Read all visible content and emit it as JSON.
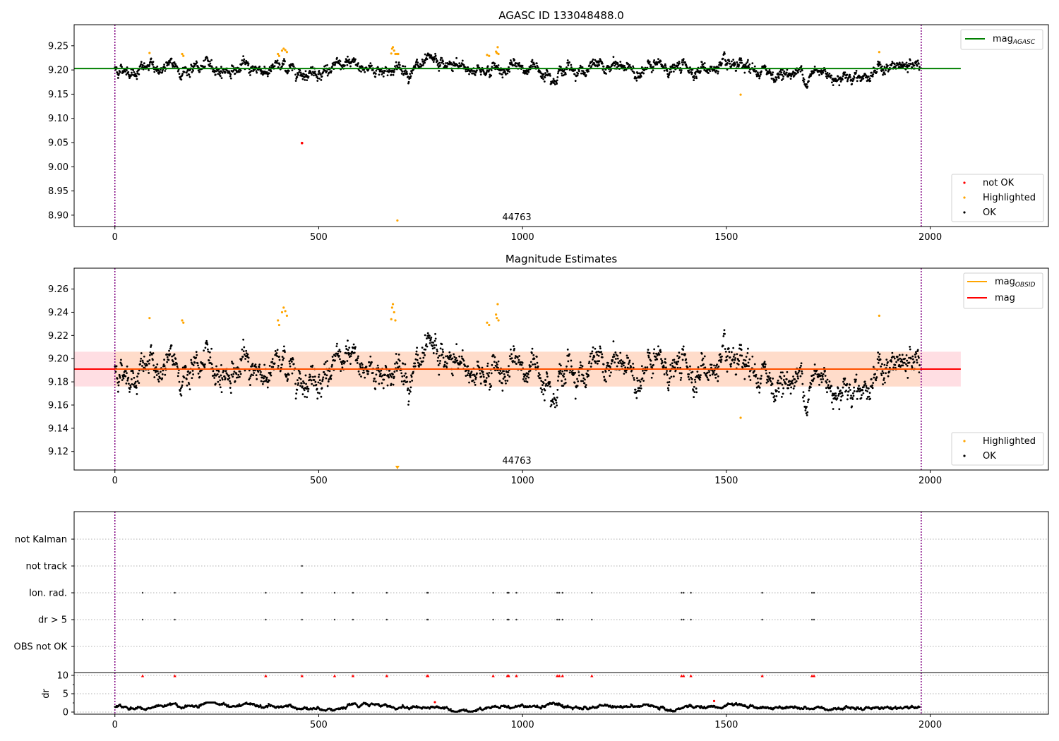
{
  "colors": {
    "ok": "#000000",
    "highlighted": "#ffa500",
    "not_ok": "#ff0000",
    "mag_agasc": "#008000",
    "mag_obsid": "#ffa500",
    "mag": "#ff0000",
    "band": "#ffb6c1",
    "band2": "#ffdab9",
    "vline": "#800080",
    "grid": "#b0b0b0"
  },
  "chart_data": [
    {
      "type": "scatter",
      "title": "AGASC ID 133048488.0",
      "xlabel": "",
      "ylabel": "",
      "xlim": [
        -100,
        2290
      ],
      "ylim": [
        8.8765,
        9.2935
      ],
      "xticks": [
        "0",
        "500",
        "1000",
        "1500",
        "2000"
      ],
      "yticks": [
        "9.25",
        "9.20",
        "9.15",
        "9.10",
        "9.05",
        "9.00",
        "8.95",
        "8.90"
      ],
      "obsid_label": "44763",
      "obsid_label_x": 990,
      "vlines": [
        0,
        1978
      ],
      "hlines": [
        {
          "name": "mag_AGASC",
          "y": 9.203,
          "x": [
            -100,
            2075
          ]
        }
      ],
      "legend_upper": {
        "position": "upper right",
        "entries": [
          {
            "label": "mag",
            "sub": "AGASC",
            "color": "mag_agasc"
          }
        ]
      },
      "legend_lower": {
        "position": "lower right",
        "entries": [
          {
            "label": "not OK",
            "color": "not_ok"
          },
          {
            "label": "Highlighted",
            "color": "highlighted"
          },
          {
            "label": "OK",
            "color": "ok"
          }
        ]
      },
      "series": [
        {
          "name": "OK",
          "n": 1975,
          "x_range": [
            0,
            1975
          ],
          "mean": 9.191,
          "noise": 0.01
        },
        {
          "name": "Highlighted",
          "points": [
            [
              85,
              9.235
            ],
            [
              165,
              9.233
            ],
            [
              168,
              9.229
            ],
            [
              400,
              9.233
            ],
            [
              403,
              9.229
            ],
            [
              410,
              9.24
            ],
            [
              414,
              9.244
            ],
            [
              418,
              9.241
            ],
            [
              422,
              9.237
            ],
            [
              678,
              9.234
            ],
            [
              680,
              9.244
            ],
            [
              682,
              9.247
            ],
            [
              685,
              9.24
            ],
            [
              688,
              9.233
            ],
            [
              692,
              9.233
            ],
            [
              695,
              9.233
            ],
            [
              913,
              9.231
            ],
            [
              918,
              9.229
            ],
            [
              935,
              9.238
            ],
            [
              937,
              9.235
            ],
            [
              939,
              9.247
            ],
            [
              941,
              9.233
            ],
            [
              1535,
              9.149
            ],
            [
              1875,
              9.237
            ],
            [
              693,
              8.889
            ]
          ]
        },
        {
          "name": "not OK",
          "points": [
            [
              459,
              9.049
            ]
          ]
        }
      ]
    },
    {
      "type": "scatter",
      "title": "Magnitude Estimates",
      "xlabel": "",
      "ylabel": "",
      "xlim": [
        -100,
        2290
      ],
      "ylim": [
        9.104,
        9.278
      ],
      "xticks": [
        "0",
        "500",
        "1000",
        "1500",
        "2000"
      ],
      "yticks": [
        "9.26",
        "9.24",
        "9.22",
        "9.20",
        "9.18",
        "9.16",
        "9.14",
        "9.12"
      ],
      "obsid_label": "44763",
      "obsid_label_x": 990,
      "vlines": [
        0,
        1978
      ],
      "hlines": [
        {
          "name": "mag",
          "y": 9.191,
          "x": [
            -100,
            2075
          ],
          "band": [
            9.176,
            9.206
          ]
        }
      ],
      "legend_upper": {
        "position": "upper right",
        "entries": [
          {
            "label": "mag",
            "sub": "OBSID",
            "color": "mag_obsid"
          },
          {
            "label": "mag",
            "sub": "",
            "color": "mag"
          }
        ]
      },
      "legend_lower": {
        "position": "lower right",
        "entries": [
          {
            "label": "Highlighted",
            "color": "highlighted"
          },
          {
            "label": "OK",
            "color": "ok"
          }
        ]
      },
      "series": [
        {
          "name": "OK",
          "n": 1975,
          "x_range": [
            0,
            1975
          ],
          "mean": 9.191,
          "noise": 0.01
        },
        {
          "name": "Highlighted",
          "points": [
            [
              85,
              9.235
            ],
            [
              165,
              9.233
            ],
            [
              168,
              9.231
            ],
            [
              400,
              9.233
            ],
            [
              403,
              9.229
            ],
            [
              410,
              9.24
            ],
            [
              414,
              9.244
            ],
            [
              418,
              9.241
            ],
            [
              422,
              9.237
            ],
            [
              678,
              9.234
            ],
            [
              680,
              9.244
            ],
            [
              682,
              9.247
            ],
            [
              685,
              9.24
            ],
            [
              688,
              9.233
            ],
            [
              913,
              9.231
            ],
            [
              918,
              9.229
            ],
            [
              935,
              9.238
            ],
            [
              937,
              9.235
            ],
            [
              939,
              9.247
            ],
            [
              941,
              9.233
            ],
            [
              1535,
              9.149
            ],
            [
              1875,
              9.237
            ]
          ]
        },
        {
          "name": "Highlighted-offscale",
          "marker": "triangle-down",
          "points": [
            [
              693,
              9.105
            ]
          ]
        }
      ]
    },
    {
      "type": "scatter",
      "title": "",
      "xlim": [
        -100,
        2290
      ],
      "categories": [
        "not Kalman",
        "not track",
        "Ion. rad.",
        "dr > 5",
        "OBS not OK"
      ],
      "flags": {
        "not track": [
          459
        ],
        "Ion. rad.": [
          68,
          147,
          370,
          459,
          539,
          584,
          667,
          766,
          768,
          928,
          963,
          966,
          985,
          1085,
          1090,
          1098,
          1170,
          1390,
          1395,
          1413,
          1588,
          1710,
          1715
        ],
        "dr > 5": [
          68,
          147,
          370,
          459,
          539,
          584,
          667,
          766,
          768,
          928,
          963,
          966,
          985,
          1085,
          1090,
          1098,
          1170,
          1390,
          1395,
          1413,
          1588,
          1710,
          1715
        ]
      },
      "vlines": [
        0,
        1978
      ]
    },
    {
      "type": "scatter",
      "title": "",
      "xlabel": "",
      "ylabel": "dr",
      "xlim": [
        -100,
        2290
      ],
      "ylim": [
        -0.5,
        10.5
      ],
      "xticks": [
        "0",
        "500",
        "1000",
        "1500",
        "2000"
      ],
      "yticks": [
        "10",
        "5",
        "0"
      ],
      "vlines": [
        0,
        1978
      ],
      "series": [
        {
          "name": "dr",
          "n": 1975,
          "x_range": [
            0,
            1975
          ],
          "range": [
            0.1,
            2.8
          ]
        },
        {
          "name": "dr > 5 (clipped)",
          "marker": "triangle-up",
          "y": 9.9,
          "x": [
            68,
            147,
            370,
            459,
            539,
            584,
            667,
            766,
            768,
            928,
            963,
            966,
            985,
            1085,
            1090,
            1098,
            1170,
            1390,
            1395,
            1413,
            1588,
            1710,
            1715
          ]
        },
        {
          "name": "dr not OK",
          "points": [
            [
              785,
              2.7
            ],
            [
              1470,
              3.0
            ]
          ]
        }
      ]
    }
  ]
}
